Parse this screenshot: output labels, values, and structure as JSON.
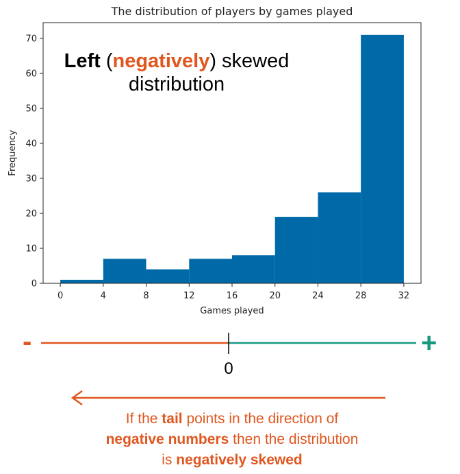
{
  "colors": {
    "bar": "#0069A8",
    "negative": "#E0561F",
    "positive": "#159A80",
    "axis": "#222222"
  },
  "chart_data": {
    "type": "bar",
    "subtype": "histogram",
    "title": "The distribution of players by games played",
    "xlabel": "Games played",
    "ylabel": "Frequency",
    "xlim": [
      -1.6,
      33.6
    ],
    "ylim": [
      0,
      74.5
    ],
    "xticks": [
      0,
      4,
      8,
      12,
      16,
      20,
      24,
      28,
      32
    ],
    "yticks": [
      0,
      10,
      20,
      30,
      40,
      50,
      60,
      70
    ],
    "bins": [
      {
        "start": 0,
        "end": 4,
        "value": 1
      },
      {
        "start": 4,
        "end": 8,
        "value": 7
      },
      {
        "start": 8,
        "end": 12,
        "value": 4
      },
      {
        "start": 12,
        "end": 16,
        "value": 7
      },
      {
        "start": 16,
        "end": 20,
        "value": 8
      },
      {
        "start": 20,
        "end": 24,
        "value": 19
      },
      {
        "start": 24,
        "end": 28,
        "value": 26
      },
      {
        "start": 28,
        "end": 32,
        "value": 71
      }
    ],
    "grid": false
  },
  "annotation": {
    "left_word": "Left",
    "open_paren": " (",
    "negatively_word": "negatively",
    "close_paren_rest": ") skewed",
    "line2": "distribution"
  },
  "number_line": {
    "minus_sign": "-",
    "plus_sign": "+",
    "zero_label": "0"
  },
  "explanation": {
    "part1": "If the ",
    "tail_word": "tail",
    "part2": " points in the direction of",
    "neg_numbers": "negative numbers",
    "part3": " then the distribution",
    "part4": "is ",
    "neg_skewed": "negatively skewed"
  }
}
